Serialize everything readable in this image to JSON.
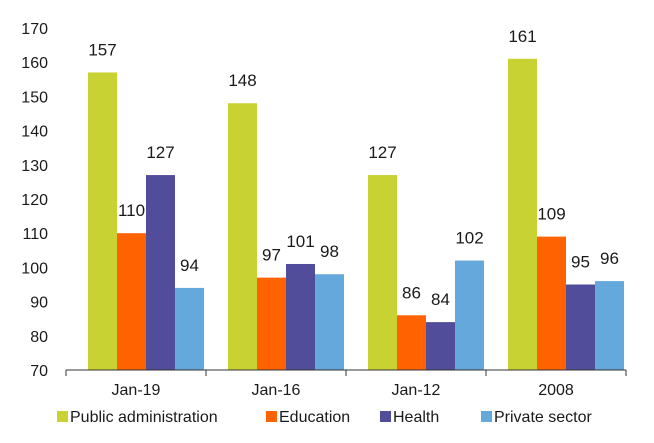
{
  "chart_data": {
    "type": "bar",
    "categories": [
      "Jan-19",
      "Jan-16",
      "Jan-12",
      "2008"
    ],
    "series": [
      {
        "name": "Public administration",
        "color": "#C8D232",
        "values": [
          157,
          148,
          127,
          161
        ]
      },
      {
        "name": "Education",
        "color": "#FF6200",
        "values": [
          110,
          97,
          86,
          109
        ]
      },
      {
        "name": "Health",
        "color": "#524D9B",
        "values": [
          127,
          101,
          84,
          95
        ]
      },
      {
        "name": "Private sector",
        "color": "#64A8DC",
        "values": [
          94,
          98,
          102,
          96
        ]
      }
    ],
    "ylim": [
      70,
      170
    ],
    "yticks": [
      70,
      80,
      90,
      100,
      110,
      120,
      130,
      140,
      150,
      160,
      170
    ],
    "title": "",
    "xlabel": "",
    "ylabel": "",
    "grid": false,
    "legend_position": "bottom"
  }
}
